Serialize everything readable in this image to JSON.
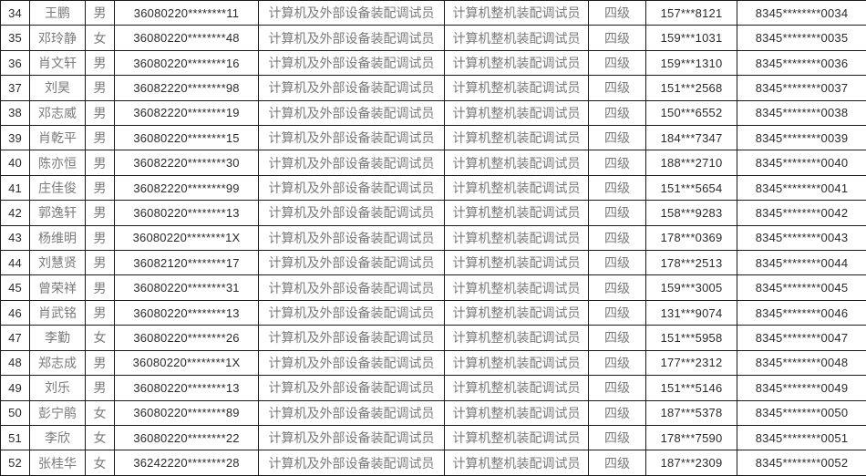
{
  "colors": {
    "background": "#ffffff",
    "border": "#1a1a1a",
    "cjk_text": "#7a7a7a",
    "numeric_text": "#2b2b2b"
  },
  "table": {
    "column_keys": [
      "no",
      "name",
      "gender",
      "id_number",
      "occupation",
      "job_title",
      "level",
      "phone",
      "cert_no"
    ],
    "numeric_keys": [
      "no",
      "id_number",
      "phone",
      "cert_no"
    ],
    "rows": [
      {
        "no": "34",
        "name": "王鹏",
        "gender": "男",
        "id_number": "36080220********11",
        "occupation": "计算机及外部设备装配调试员",
        "job_title": "计算机整机装配调试员",
        "level": "四级",
        "phone": "157***8121",
        "cert_no": "8345********0034"
      },
      {
        "no": "35",
        "name": "邓玲静",
        "gender": "女",
        "id_number": "36080220********48",
        "occupation": "计算机及外部设备装配调试员",
        "job_title": "计算机整机装配调试员",
        "level": "四级",
        "phone": "159***1031",
        "cert_no": "8345********0035"
      },
      {
        "no": "36",
        "name": "肖文轩",
        "gender": "男",
        "id_number": "36080220********16",
        "occupation": "计算机及外部设备装配调试员",
        "job_title": "计算机整机装配调试员",
        "level": "四级",
        "phone": "159***1310",
        "cert_no": "8345********0036"
      },
      {
        "no": "37",
        "name": "刘昊",
        "gender": "男",
        "id_number": "36082220********98",
        "occupation": "计算机及外部设备装配调试员",
        "job_title": "计算机整机装配调试员",
        "level": "四级",
        "phone": "151***2568",
        "cert_no": "8345********0037"
      },
      {
        "no": "38",
        "name": "邓志威",
        "gender": "男",
        "id_number": "36082220********19",
        "occupation": "计算机及外部设备装配调试员",
        "job_title": "计算机整机装配调试员",
        "level": "四级",
        "phone": "150***6552",
        "cert_no": "8345********0038"
      },
      {
        "no": "39",
        "name": "肖乾平",
        "gender": "男",
        "id_number": "36080220********15",
        "occupation": "计算机及外部设备装配调试员",
        "job_title": "计算机整机装配调试员",
        "level": "四级",
        "phone": "184***7347",
        "cert_no": "8345********0039"
      },
      {
        "no": "40",
        "name": "陈亦恒",
        "gender": "男",
        "id_number": "36082220********30",
        "occupation": "计算机及外部设备装配调试员",
        "job_title": "计算机整机装配调试员",
        "level": "四级",
        "phone": "188***2710",
        "cert_no": "8345********0040"
      },
      {
        "no": "41",
        "name": "庄佳俊",
        "gender": "男",
        "id_number": "36082220********99",
        "occupation": "计算机及外部设备装配调试员",
        "job_title": "计算机整机装配调试员",
        "level": "四级",
        "phone": "151***5654",
        "cert_no": "8345********0041"
      },
      {
        "no": "42",
        "name": "郭逸轩",
        "gender": "男",
        "id_number": "36080220********13",
        "occupation": "计算机及外部设备装配调试员",
        "job_title": "计算机整机装配调试员",
        "level": "四级",
        "phone": "158***9283",
        "cert_no": "8345********0042"
      },
      {
        "no": "43",
        "name": "杨维明",
        "gender": "男",
        "id_number": "36080220********1X",
        "occupation": "计算机及外部设备装配调试员",
        "job_title": "计算机整机装配调试员",
        "level": "四级",
        "phone": "178***0369",
        "cert_no": "8345********0043"
      },
      {
        "no": "44",
        "name": "刘慧贤",
        "gender": "男",
        "id_number": "36082120********17",
        "occupation": "计算机及外部设备装配调试员",
        "job_title": "计算机整机装配调试员",
        "level": "四级",
        "phone": "178***2513",
        "cert_no": "8345********0044"
      },
      {
        "no": "45",
        "name": "曾荣祥",
        "gender": "男",
        "id_number": "36080220********31",
        "occupation": "计算机及外部设备装配调试员",
        "job_title": "计算机整机装配调试员",
        "level": "四级",
        "phone": "159***3005",
        "cert_no": "8345********0045"
      },
      {
        "no": "46",
        "name": "肖武铭",
        "gender": "男",
        "id_number": "36080220********13",
        "occupation": "计算机及外部设备装配调试员",
        "job_title": "计算机整机装配调试员",
        "level": "四级",
        "phone": "131***9074",
        "cert_no": "8345********0046"
      },
      {
        "no": "47",
        "name": "李勤",
        "gender": "女",
        "id_number": "36080220********26",
        "occupation": "计算机及外部设备装配调试员",
        "job_title": "计算机整机装配调试员",
        "level": "四级",
        "phone": "151***5958",
        "cert_no": "8345********0047"
      },
      {
        "no": "48",
        "name": "郑志成",
        "gender": "男",
        "id_number": "36080220********1X",
        "occupation": "计算机及外部设备装配调试员",
        "job_title": "计算机整机装配调试员",
        "level": "四级",
        "phone": "177***2312",
        "cert_no": "8345********0048"
      },
      {
        "no": "49",
        "name": "刘乐",
        "gender": "男",
        "id_number": "36080220********13",
        "occupation": "计算机及外部设备装配调试员",
        "job_title": "计算机整机装配调试员",
        "level": "四级",
        "phone": "151***5146",
        "cert_no": "8345********0049"
      },
      {
        "no": "50",
        "name": "彭宁鹃",
        "gender": "女",
        "id_number": "36080220********89",
        "occupation": "计算机及外部设备装配调试员",
        "job_title": "计算机整机装配调试员",
        "level": "四级",
        "phone": "187***5378",
        "cert_no": "8345********0050"
      },
      {
        "no": "51",
        "name": "李欣",
        "gender": "女",
        "id_number": "36080220********22",
        "occupation": "计算机及外部设备装配调试员",
        "job_title": "计算机整机装配调试员",
        "level": "四级",
        "phone": "178***7590",
        "cert_no": "8345********0051"
      },
      {
        "no": "52",
        "name": "张桂华",
        "gender": "女",
        "id_number": "36242220********28",
        "occupation": "计算机及外部设备装配调试员",
        "job_title": "计算机整机装配调试员",
        "level": "四级",
        "phone": "187***2309",
        "cert_no": "8345********0052"
      }
    ]
  }
}
